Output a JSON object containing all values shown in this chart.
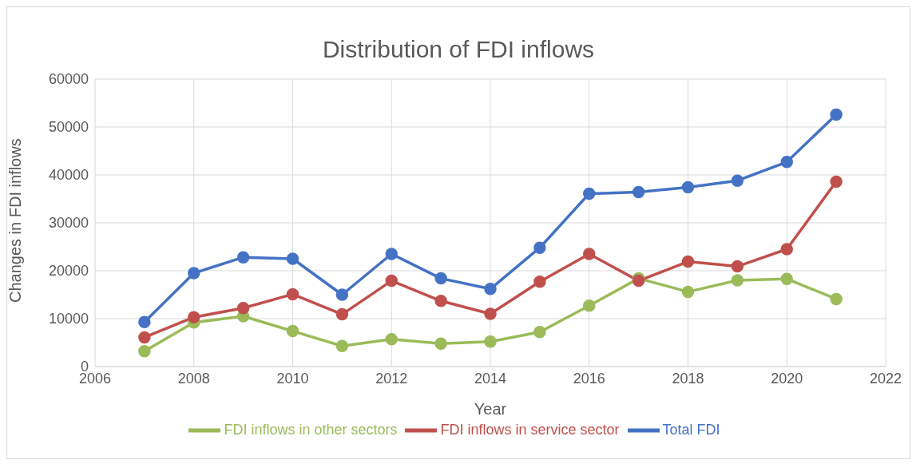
{
  "chart_data": {
    "type": "line",
    "title": "Distribution of FDI inflows",
    "xlabel": "Year",
    "ylabel": "Changes in FDI inflows",
    "x": [
      2007,
      2008,
      2009,
      2010,
      2011,
      2012,
      2013,
      2014,
      2015,
      2016,
      2017,
      2018,
      2019,
      2020,
      2021
    ],
    "series": [
      {
        "name": "Total FDI",
        "color": "#4472c4",
        "values": [
          9300,
          19500,
          22800,
          22500,
          15000,
          23500,
          18400,
          16200,
          24800,
          36100,
          36400,
          37400,
          38800,
          42700,
          52600
        ]
      },
      {
        "name": "FDI inflows in service sector",
        "color": "#c0504d",
        "values": [
          6100,
          10300,
          12200,
          15100,
          10900,
          17900,
          13700,
          11000,
          17700,
          23500,
          17900,
          21900,
          20900,
          24500,
          38600
        ]
      },
      {
        "name": "FDI inflows in other sectors",
        "color": "#9bbb59",
        "values": [
          3200,
          9200,
          10500,
          7400,
          4300,
          5700,
          4800,
          5200,
          7200,
          12700,
          18400,
          15600,
          18000,
          18300,
          14100
        ]
      }
    ],
    "xlim": [
      2006,
      2022
    ],
    "xticks": [
      2006,
      2008,
      2010,
      2012,
      2014,
      2016,
      2018,
      2020,
      2022
    ],
    "ylim": [
      0,
      60000
    ],
    "yticks": [
      0,
      10000,
      20000,
      30000,
      40000,
      50000,
      60000
    ],
    "grid": true,
    "legend": "bottom",
    "marker": "circle",
    "line_style": "solid"
  }
}
